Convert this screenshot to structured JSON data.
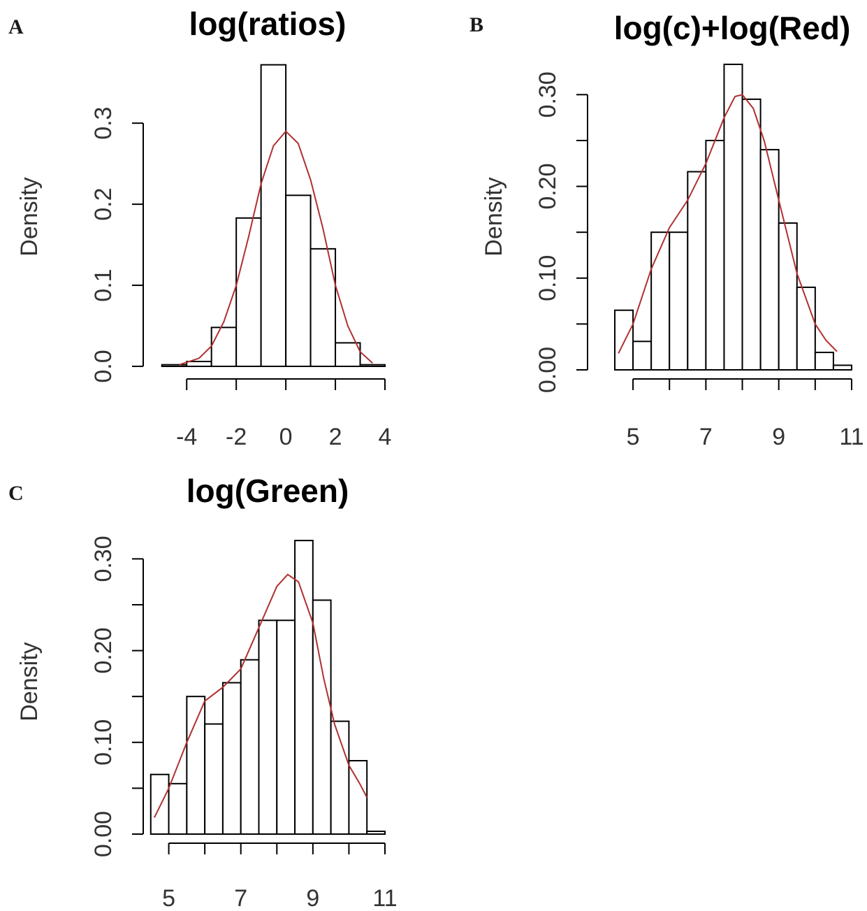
{
  "chart_data": [
    {
      "type": "bar",
      "subtype": "histogram with density curve",
      "panel_label": "A",
      "title": "log(ratios)",
      "xlabel": "",
      "ylabel": "Density",
      "xlim": [
        -5.5,
        4
      ],
      "ylim": [
        0,
        0.37
      ],
      "xticks": [
        -4,
        -2,
        0,
        2,
        4
      ],
      "xtick_labels": [
        "-4",
        "-2",
        "0",
        "2",
        "4"
      ],
      "yticks": [
        0.0,
        0.1,
        0.2,
        0.3
      ],
      "ytick_labels": [
        "0.0",
        "0.1",
        "0.2",
        "0.3"
      ],
      "bins": [
        {
          "x0": -5.0,
          "x1": -4.0,
          "density": 0.002
        },
        {
          "x0": -4.0,
          "x1": -3.0,
          "density": 0.006
        },
        {
          "x0": -3.0,
          "x1": -2.0,
          "density": 0.048
        },
        {
          "x0": -2.0,
          "x1": -1.0,
          "density": 0.183
        },
        {
          "x0": -1.0,
          "x1": 0.0,
          "density": 0.372
        },
        {
          "x0": 0.0,
          "x1": 1.0,
          "density": 0.211
        },
        {
          "x0": 1.0,
          "x1": 2.0,
          "density": 0.145
        },
        {
          "x0": 2.0,
          "x1": 3.0,
          "density": 0.029
        },
        {
          "x0": 3.0,
          "x1": 4.0,
          "density": 0.002
        }
      ],
      "curve_color": "#b03030",
      "density_curve": {
        "x": [
          -4.3,
          -3.5,
          -3.0,
          -2.5,
          -2.0,
          -1.5,
          -1.0,
          -0.5,
          0.0,
          0.5,
          1.0,
          1.5,
          2.0,
          2.5,
          3.0,
          3.5
        ],
        "y": [
          0.002,
          0.01,
          0.025,
          0.055,
          0.1,
          0.16,
          0.225,
          0.272,
          0.29,
          0.275,
          0.23,
          0.17,
          0.1,
          0.05,
          0.018,
          0.004
        ]
      }
    },
    {
      "type": "bar",
      "subtype": "histogram with density curve",
      "panel_label": "B",
      "title": "log(c)+log(Red)",
      "xlabel": "",
      "ylabel": "Density",
      "xlim": [
        4.5,
        11
      ],
      "ylim": [
        0,
        0.33
      ],
      "xticks": [
        5,
        6,
        7,
        8,
        9,
        10,
        11
      ],
      "xtick_labels": [
        "5",
        "",
        "7",
        "",
        "9",
        "",
        "11"
      ],
      "yticks": [
        0.0,
        0.05,
        0.1,
        0.15,
        0.2,
        0.25,
        0.3
      ],
      "ytick_labels": [
        "0.00",
        "",
        "0.10",
        "",
        "0.20",
        "",
        "0.30"
      ],
      "bins": [
        {
          "x0": 4.5,
          "x1": 5.0,
          "density": 0.065
        },
        {
          "x0": 5.0,
          "x1": 5.5,
          "density": 0.031
        },
        {
          "x0": 5.5,
          "x1": 6.0,
          "density": 0.15
        },
        {
          "x0": 6.0,
          "x1": 6.5,
          "density": 0.15
        },
        {
          "x0": 6.5,
          "x1": 7.0,
          "density": 0.216
        },
        {
          "x0": 7.0,
          "x1": 7.5,
          "density": 0.25
        },
        {
          "x0": 7.5,
          "x1": 8.0,
          "density": 0.333
        },
        {
          "x0": 8.0,
          "x1": 8.5,
          "density": 0.295
        },
        {
          "x0": 8.5,
          "x1": 9.0,
          "density": 0.24
        },
        {
          "x0": 9.0,
          "x1": 9.5,
          "density": 0.16
        },
        {
          "x0": 9.5,
          "x1": 10.0,
          "density": 0.09
        },
        {
          "x0": 10.0,
          "x1": 10.5,
          "density": 0.019
        },
        {
          "x0": 10.5,
          "x1": 11.0,
          "density": 0.005
        }
      ],
      "curve_color": "#b03030",
      "density_curve": {
        "x": [
          4.6,
          5.0,
          5.5,
          6.0,
          6.5,
          7.0,
          7.5,
          7.8,
          8.0,
          8.3,
          8.6,
          9.0,
          9.5,
          10.0,
          10.3,
          10.6
        ],
        "y": [
          0.018,
          0.05,
          0.11,
          0.155,
          0.185,
          0.225,
          0.275,
          0.298,
          0.3,
          0.285,
          0.25,
          0.185,
          0.105,
          0.05,
          0.032,
          0.02
        ]
      }
    },
    {
      "type": "bar",
      "subtype": "histogram with density curve",
      "panel_label": "C",
      "title": "log(Green)",
      "xlabel": "",
      "ylabel": "Density",
      "xlim": [
        4.0,
        11
      ],
      "ylim": [
        0,
        0.33
      ],
      "xticks": [
        5,
        6,
        7,
        8,
        9,
        10,
        11
      ],
      "xtick_labels": [
        "5",
        "",
        "7",
        "",
        "9",
        "",
        "11"
      ],
      "yticks": [
        0.0,
        0.05,
        0.1,
        0.15,
        0.2,
        0.25,
        0.3
      ],
      "ytick_labels": [
        "0.00",
        "",
        "0.10",
        "",
        "0.20",
        "",
        "0.30"
      ],
      "bins": [
        {
          "x0": 4.5,
          "x1": 5.0,
          "density": 0.065
        },
        {
          "x0": 5.0,
          "x1": 5.5,
          "density": 0.055
        },
        {
          "x0": 5.5,
          "x1": 6.0,
          "density": 0.15
        },
        {
          "x0": 6.0,
          "x1": 6.5,
          "density": 0.12
        },
        {
          "x0": 6.5,
          "x1": 7.0,
          "density": 0.165
        },
        {
          "x0": 7.0,
          "x1": 7.5,
          "density": 0.19
        },
        {
          "x0": 7.5,
          "x1": 8.0,
          "density": 0.233
        },
        {
          "x0": 8.0,
          "x1": 8.5,
          "density": 0.233
        },
        {
          "x0": 8.5,
          "x1": 9.0,
          "density": 0.32
        },
        {
          "x0": 9.0,
          "x1": 9.5,
          "density": 0.255
        },
        {
          "x0": 9.5,
          "x1": 10.0,
          "density": 0.123
        },
        {
          "x0": 10.0,
          "x1": 10.5,
          "density": 0.08
        },
        {
          "x0": 10.5,
          "x1": 11.0,
          "density": 0.003
        }
      ],
      "curve_color": "#b03030",
      "density_curve": {
        "x": [
          4.6,
          5.0,
          5.5,
          6.0,
          6.5,
          7.0,
          7.5,
          8.0,
          8.3,
          8.6,
          9.0,
          9.3,
          9.6,
          10.0,
          10.3,
          10.5
        ],
        "y": [
          0.018,
          0.05,
          0.1,
          0.145,
          0.16,
          0.18,
          0.225,
          0.27,
          0.283,
          0.275,
          0.23,
          0.17,
          0.12,
          0.075,
          0.055,
          0.04
        ]
      }
    }
  ]
}
